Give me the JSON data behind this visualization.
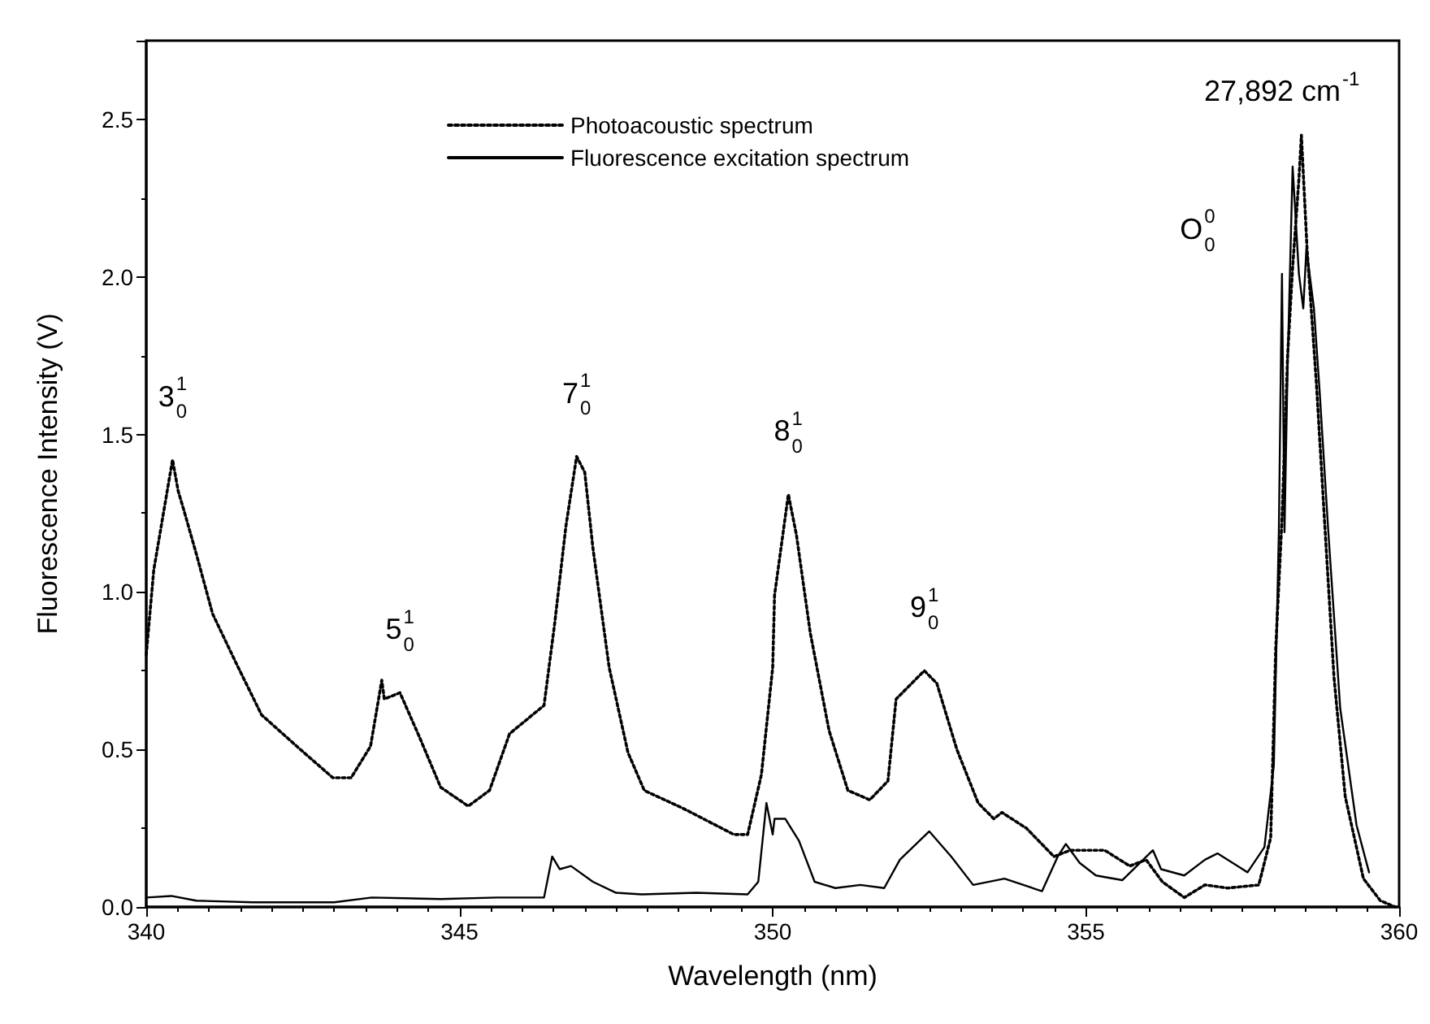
{
  "chart_data": {
    "type": "line",
    "xlabel": "Wavelength (nm)",
    "ylabel": "Fluorescence Intensity (V)",
    "xlim": [
      340,
      360
    ],
    "xticks": [
      340,
      345,
      350,
      355,
      360
    ],
    "ylim": [
      0,
      2.75
    ],
    "yticks": [
      {
        "value": 0,
        "label": "0.0"
      },
      {
        "value": 0.5,
        "label": "0.5"
      },
      {
        "value": 1,
        "label": "1.0"
      },
      {
        "value": 1.5,
        "label": "1.5"
      },
      {
        "value": 2,
        "label": "2.0"
      },
      {
        "value": 2.5,
        "label": "2.5"
      }
    ],
    "grid": false,
    "legend": "top",
    "marker": "none",
    "series": [
      {
        "name": "Photoacoustic spectrum",
        "color": "#000000",
        "line_style": "dotted",
        "x": [
          340.0,
          340.12,
          340.3,
          340.42,
          340.51,
          340.6,
          340.8,
          341.06,
          341.42,
          341.84,
          342.46,
          342.98,
          343.27,
          343.58,
          343.76,
          343.8,
          344.05,
          344.36,
          344.7,
          345.14,
          345.48,
          345.8,
          346.35,
          346.52,
          346.7,
          346.87,
          347.0,
          347.13,
          347.39,
          347.69,
          347.95,
          348.6,
          349.38,
          349.6,
          349.82,
          350.0,
          350.03,
          350.25,
          350.38,
          350.6,
          350.9,
          351.2,
          351.55,
          351.84,
          351.97,
          352.42,
          352.62,
          352.94,
          353.28,
          353.53,
          353.66,
          354.05,
          354.49,
          354.75,
          355.3,
          355.7,
          355.96,
          356.22,
          356.57,
          356.9,
          357.26,
          357.76,
          357.95,
          358.03,
          358.13,
          358.22,
          358.3,
          358.4,
          358.44,
          358.53,
          358.68,
          358.82,
          358.96,
          359.14,
          359.43,
          359.7,
          359.94
        ],
        "values": [
          0.8,
          1.07,
          1.28,
          1.42,
          1.32,
          1.26,
          1.12,
          0.93,
          0.78,
          0.61,
          0.5,
          0.41,
          0.41,
          0.51,
          0.72,
          0.66,
          0.68,
          0.54,
          0.38,
          0.32,
          0.37,
          0.55,
          0.64,
          0.9,
          1.21,
          1.43,
          1.38,
          1.14,
          0.76,
          0.49,
          0.37,
          0.31,
          0.23,
          0.23,
          0.42,
          0.76,
          0.99,
          1.31,
          1.18,
          0.87,
          0.56,
          0.37,
          0.34,
          0.4,
          0.66,
          0.75,
          0.71,
          0.5,
          0.33,
          0.28,
          0.3,
          0.25,
          0.16,
          0.18,
          0.18,
          0.13,
          0.15,
          0.08,
          0.03,
          0.07,
          0.06,
          0.07,
          0.22,
          0.82,
          1.23,
          1.75,
          2.03,
          2.31,
          2.45,
          2.09,
          1.66,
          1.19,
          0.73,
          0.35,
          0.09,
          0.02,
          0.0
        ]
      },
      {
        "name": "Fluorescence excitation spectrum",
        "color": "#000000",
        "line_style": "solid",
        "x": [
          340.0,
          340.4,
          340.8,
          341.7,
          343.0,
          343.6,
          344.7,
          345.6,
          346.35,
          346.48,
          346.6,
          346.78,
          347.13,
          347.5,
          347.91,
          348.78,
          349.6,
          349.77,
          349.9,
          350.0,
          350.03,
          350.2,
          350.42,
          350.67,
          351.0,
          351.4,
          351.78,
          352.03,
          352.5,
          352.85,
          353.2,
          353.7,
          354.3,
          354.55,
          354.68,
          354.9,
          355.16,
          355.58,
          356.07,
          356.2,
          356.57,
          356.9,
          357.1,
          357.58,
          357.85,
          358.0,
          358.08,
          358.13,
          358.17,
          358.22,
          358.3,
          358.4,
          358.47,
          358.52,
          358.64,
          358.73,
          358.87,
          359.06,
          359.32,
          359.52
        ],
        "values": [
          0.03,
          0.035,
          0.02,
          0.015,
          0.015,
          0.03,
          0.025,
          0.03,
          0.03,
          0.16,
          0.12,
          0.13,
          0.08,
          0.045,
          0.04,
          0.045,
          0.04,
          0.08,
          0.33,
          0.23,
          0.28,
          0.28,
          0.21,
          0.08,
          0.06,
          0.07,
          0.06,
          0.15,
          0.24,
          0.16,
          0.07,
          0.09,
          0.05,
          0.16,
          0.2,
          0.14,
          0.1,
          0.085,
          0.18,
          0.12,
          0.1,
          0.15,
          0.17,
          0.11,
          0.19,
          0.45,
          1.19,
          2.01,
          1.19,
          1.72,
          2.35,
          2.01,
          1.9,
          2.09,
          1.9,
          1.64,
          1.19,
          0.63,
          0.26,
          0.11
        ]
      }
    ],
    "annotations": [
      {
        "text": "3$^{1}$$_{0}$",
        "x": 340.42,
        "y": 1.42
      },
      {
        "text": "5$^{1}$$_{0}$",
        "x": 344.05,
        "y": 0.68
      },
      {
        "text": "7$^{1}$$_{0}$",
        "x": 346.87,
        "y": 1.43
      },
      {
        "text": "8$^{1}$$_{0}$",
        "x": 350.25,
        "y": 1.31
      },
      {
        "text": "9$^{1}$$_{0}$",
        "x": 352.42,
        "y": 0.75
      },
      "O$^{0}$$_{0}$",
      {
        "text": "27,892 cm$^{-1}$",
        "x": 358.44,
        "y": 2.45
      }
    ]
  }
}
